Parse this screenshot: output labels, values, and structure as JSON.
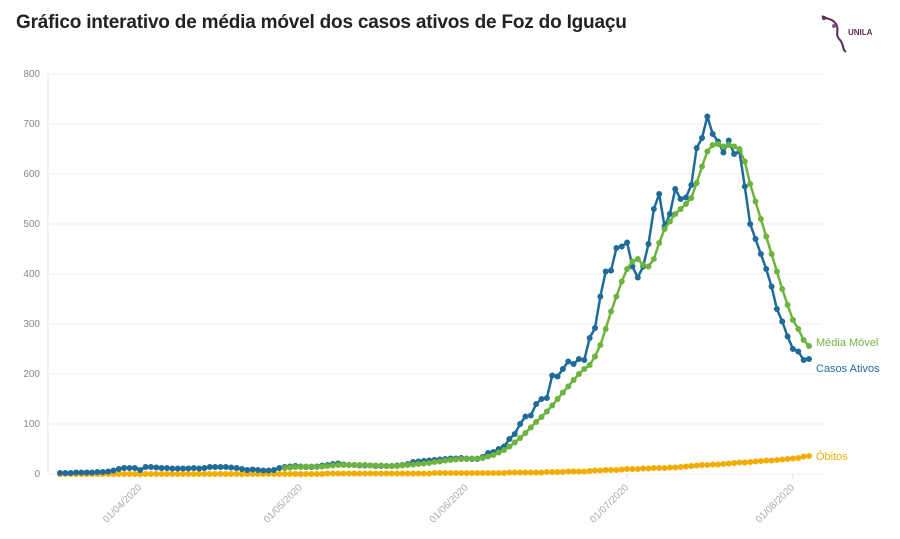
{
  "chart_data": {
    "type": "line",
    "title": "Gráfico interativo de média móvel dos casos ativos de Foz do Iguaçu",
    "logo_text": "UNILA",
    "start_date": "2020-03-17",
    "ylim": [
      0,
      800
    ],
    "yticks": [
      0,
      100,
      200,
      300,
      400,
      500,
      600,
      700,
      800
    ],
    "xticks": [
      {
        "day": 15,
        "label": "01/04/2020"
      },
      {
        "day": 45,
        "label": "01/05/2020"
      },
      {
        "day": 76,
        "label": "01/06/2020"
      },
      {
        "day": 106,
        "label": "01/07/2020"
      },
      {
        "day": 137,
        "label": "01/08/2020"
      }
    ],
    "grid": true,
    "legend": "line-end labels (right)",
    "series": [
      {
        "name": "Casos Ativos",
        "color": "#1f6b99",
        "start_day": 0,
        "values": [
          2,
          2,
          2,
          3,
          3,
          3,
          3,
          4,
          4,
          5,
          7,
          10,
          12,
          12,
          12,
          8,
          14,
          14,
          13,
          12,
          12,
          11,
          11,
          11,
          11,
          12,
          11,
          12,
          14,
          14,
          14,
          14,
          13,
          12,
          10,
          8,
          9,
          8,
          7,
          7,
          8,
          12,
          14,
          15,
          16,
          15,
          14,
          14,
          15,
          17,
          18,
          20,
          21,
          19,
          18,
          18,
          17,
          17,
          17,
          16,
          16,
          16,
          16,
          17,
          18,
          20,
          24,
          25,
          26,
          27,
          28,
          29,
          30,
          31,
          31,
          32,
          31,
          30,
          30,
          34,
          42,
          44,
          50,
          55,
          70,
          80,
          100,
          115,
          117,
          140,
          150,
          152,
          197,
          195,
          210,
          225,
          220,
          230,
          228,
          272,
          292,
          355,
          405,
          407,
          452,
          455,
          463,
          415,
          393,
          415,
          460,
          530,
          560,
          495,
          520,
          570,
          550,
          553,
          578,
          652,
          672,
          715,
          680,
          665,
          643,
          667,
          640,
          645,
          575,
          500,
          470,
          440,
          410,
          375,
          330,
          305,
          275,
          250,
          245,
          228,
          230
        ]
      },
      {
        "name": "Média Móvel",
        "color": "#6db33f",
        "start_day": 42,
        "values": [
          12,
          13,
          14,
          14,
          15,
          15,
          14,
          15,
          16,
          17,
          18,
          18,
          18,
          18,
          18,
          18,
          17,
          17,
          17,
          16,
          16,
          16,
          17,
          18,
          19,
          20,
          21,
          22,
          24,
          25,
          27,
          28,
          29,
          30,
          30,
          31,
          31,
          32,
          35,
          38,
          43,
          48,
          55,
          63,
          72,
          82,
          93,
          104,
          114,
          125,
          137,
          150,
          163,
          175,
          188,
          200,
          210,
          218,
          235,
          258,
          290,
          325,
          355,
          385,
          410,
          425,
          430,
          418,
          415,
          430,
          462,
          490,
          505,
          520,
          530,
          540,
          552,
          582,
          615,
          645,
          658,
          660,
          655,
          658,
          655,
          650,
          625,
          580,
          545,
          510,
          475,
          440,
          405,
          370,
          338,
          308,
          290,
          268,
          256
        ]
      },
      {
        "name": "Óbitos",
        "color": "#f0ad00",
        "start_day": 0,
        "values": [
          0,
          0,
          0,
          0,
          0,
          0,
          0,
          0,
          0,
          0,
          0,
          0,
          0,
          0,
          0,
          0,
          0,
          0,
          0,
          0,
          0,
          0,
          0,
          0,
          0,
          0,
          0,
          0,
          0,
          0,
          0,
          0,
          0,
          0,
          0,
          0,
          0,
          0,
          0,
          0,
          0,
          0,
          0,
          0,
          0,
          0,
          0,
          0,
          0,
          0,
          1,
          1,
          1,
          1,
          1,
          1,
          1,
          1,
          1,
          1,
          1,
          1,
          1,
          1,
          1,
          1,
          1,
          1,
          1,
          1,
          2,
          2,
          2,
          2,
          2,
          2,
          2,
          2,
          2,
          2,
          2,
          2,
          2,
          2,
          3,
          3,
          3,
          3,
          3,
          3,
          3,
          4,
          4,
          4,
          4,
          5,
          5,
          5,
          5,
          6,
          7,
          7,
          8,
          8,
          8,
          9,
          10,
          10,
          10,
          11,
          11,
          12,
          12,
          12,
          13,
          13,
          14,
          15,
          16,
          17,
          18,
          18,
          19,
          19,
          20,
          21,
          22,
          23,
          23,
          24,
          25,
          26,
          27,
          27,
          28,
          29,
          30,
          31,
          32,
          35,
          36
        ]
      }
    ]
  }
}
